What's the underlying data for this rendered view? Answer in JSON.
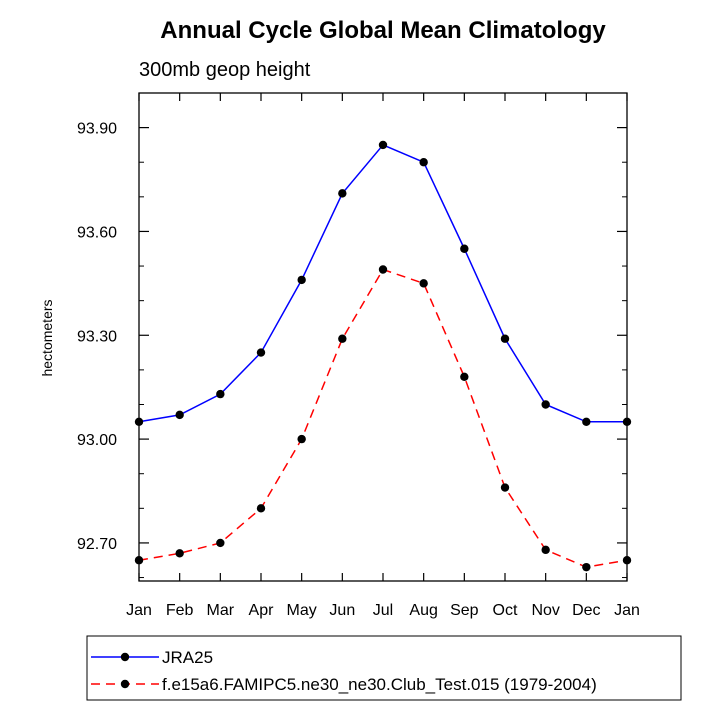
{
  "chart_data": {
    "type": "line",
    "title": "Annual Cycle Global Mean Climatology",
    "subtitle": "300mb geop height",
    "ylabel": "hectometers",
    "xlabel": "",
    "categories": [
      "Jan",
      "Feb",
      "Mar",
      "Apr",
      "May",
      "Jun",
      "Jul",
      "Aug",
      "Sep",
      "Oct",
      "Nov",
      "Dec",
      "Jan"
    ],
    "ylim": [
      92.59,
      94.0
    ],
    "yticks": [
      "92.70",
      "93.00",
      "93.30",
      "93.60",
      "93.90"
    ],
    "grid": false,
    "legend_position": "bottom",
    "series": [
      {
        "name": "JRA25",
        "color": "#0000ff",
        "line_style": "solid",
        "marker": "filled-circle",
        "values": [
          93.05,
          93.07,
          93.13,
          93.25,
          93.46,
          93.71,
          93.85,
          93.8,
          93.55,
          93.29,
          93.1,
          93.05,
          93.05
        ]
      },
      {
        "name": "f.e15a6.FAMIPC5.ne30_ne30.Club_Test.015 (1979-2004)",
        "color": "#ff0000",
        "line_style": "dashed",
        "marker": "filled-circle",
        "values": [
          92.65,
          92.67,
          92.7,
          92.8,
          93.0,
          93.29,
          93.49,
          93.45,
          93.18,
          92.86,
          92.68,
          92.63,
          92.65
        ]
      }
    ]
  }
}
